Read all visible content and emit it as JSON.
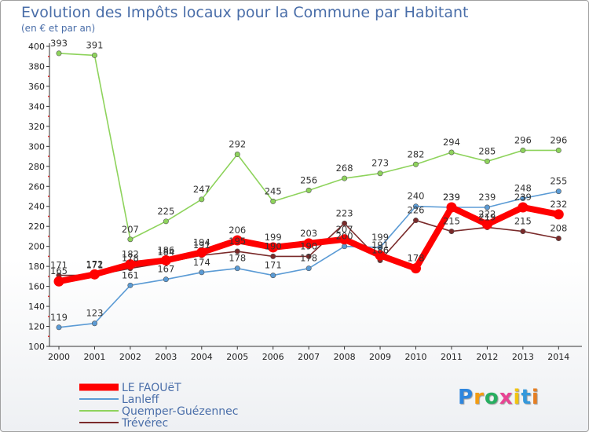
{
  "chart_data": {
    "type": "line",
    "title": "Evolution des Impôts locaux pour la Commune par Habitant",
    "subtitle": "(en € et par an)",
    "xlabel": "",
    "ylabel": "",
    "categories": [
      "2000",
      "2001",
      "2002",
      "2003",
      "2004",
      "2005",
      "2006",
      "2007",
      "2008",
      "2009",
      "2010",
      "2011",
      "2012",
      "2013",
      "2014"
    ],
    "ylim": [
      100,
      400
    ],
    "yticks": [
      100,
      120,
      140,
      160,
      180,
      200,
      220,
      240,
      260,
      280,
      300,
      320,
      340,
      360,
      380,
      400
    ],
    "grid": false,
    "legend_position": "bottom-left",
    "series": [
      {
        "name": "LE FAOUëT",
        "color": "#ff0000",
        "values": [
          165,
          172,
          182,
          186,
          194,
          206,
          199,
          203,
          207,
          191,
          178,
          239,
          222,
          239,
          232
        ]
      },
      {
        "name": "Lanleff",
        "color": "#5b9bd5",
        "values": [
          119,
          123,
          161,
          167,
          174,
          178,
          171,
          178,
          200,
          199,
          240,
          239,
          239,
          248,
          255
        ]
      },
      {
        "name": "Quemper-Guézennec",
        "color": "#8ed35c",
        "values": [
          393,
          391,
          207,
          225,
          247,
          292,
          245,
          256,
          268,
          273,
          282,
          294,
          285,
          296,
          296
        ]
      },
      {
        "name": "Trévérec",
        "color": "#7a2a2a",
        "values": [
          171,
          171,
          178,
          184,
          191,
          195,
          190,
          190,
          223,
          186,
          226,
          215,
          219,
          215,
          208
        ]
      }
    ]
  },
  "logo": {
    "letters": [
      "P",
      "r",
      "o",
      "x",
      "i",
      "t",
      "i"
    ],
    "colors": [
      "#2e86de",
      "#f39c12",
      "#27ae60",
      "#e84393",
      "#f1c40f",
      "#3498db",
      "#e67e22"
    ]
  }
}
